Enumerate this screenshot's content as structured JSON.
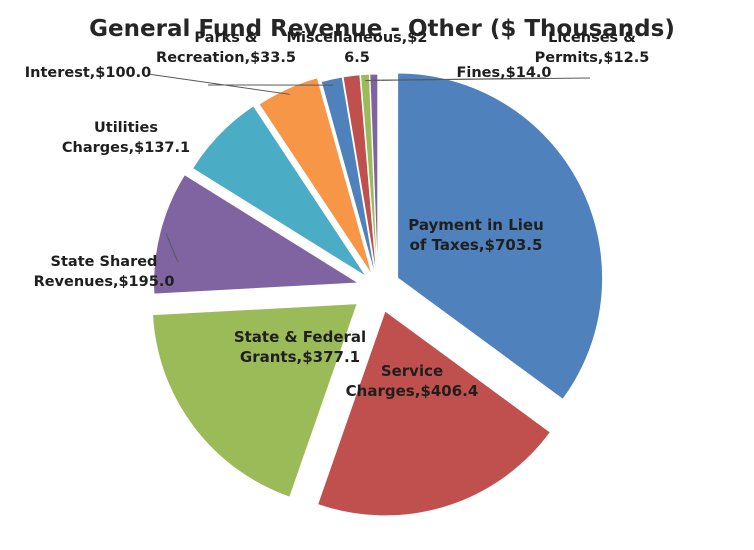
{
  "chart_data": {
    "type": "pie",
    "title": "General Fund Revenue - Other ($ Thousands)",
    "unit": "$ Thousands",
    "slices": [
      {
        "label": "Payment in Lieu of Taxes",
        "value": 703.5,
        "display": "$703.5",
        "color": "#4F81BD"
      },
      {
        "label": "Service Charges",
        "value": 406.4,
        "display": "$406.4",
        "color": "#C0504D"
      },
      {
        "label": "State & Federal Grants",
        "value": 377.1,
        "display": "$377.1",
        "color": "#9BBB59"
      },
      {
        "label": "State Shared Revenues",
        "value": 195.0,
        "display": "$195.0",
        "color": "#8064A2"
      },
      {
        "label": "Utilities Charges",
        "value": 137.1,
        "display": "$137.1",
        "color": "#4BACC6"
      },
      {
        "label": "Interest",
        "value": 100.0,
        "display": "$100.0",
        "color": "#F79646"
      },
      {
        "label": "Parks & Recreation",
        "value": 33.5,
        "display": "$33.5",
        "color": "#4F81BD"
      },
      {
        "label": "Miscellaneous",
        "value": 26.5,
        "display": "$26.5",
        "color": "#C0504D"
      },
      {
        "label": "Fines",
        "value": 14.0,
        "display": "$14.0",
        "color": "#9BBB59"
      },
      {
        "label": "Licenses & Permits",
        "value": 12.5,
        "display": "$12.5",
        "color": "#8064A2"
      }
    ],
    "label_lines": [
      [
        "Payment in Lieu",
        "of Taxes,$703.5"
      ],
      [
        "Service",
        "Charges,$406.4"
      ],
      [
        "State & Federal",
        "Grants,$377.1"
      ],
      [
        "State Shared",
        "Revenues,$195.0"
      ],
      [
        "Utilities",
        "Charges,$137.1"
      ],
      [
        "Interest,$100.0"
      ],
      [
        "Parks &",
        "Recreation,$33.5"
      ],
      [
        "Miscellaneous,$2",
        "6.5"
      ],
      [
        "Fines,$14.0"
      ],
      [
        "Licenses &",
        "Permits,$12.5"
      ]
    ],
    "legend": "none",
    "data_labels": "category-name-and-value"
  }
}
